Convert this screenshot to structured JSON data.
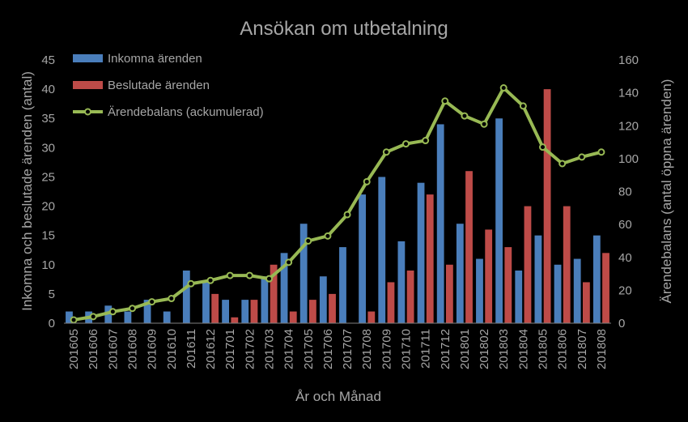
{
  "chart_data": {
    "type": "bar",
    "title": "Ansökan om utbetalning",
    "xlabel": "År och Månad",
    "ylabel": "Inkomna och beslutade ärenden (antal)",
    "y2label": "Ärendebalans (antal öppna ärenden)",
    "ylim": [
      0,
      45
    ],
    "y2lim": [
      0,
      160
    ],
    "yticks": [
      0,
      5,
      10,
      15,
      20,
      25,
      30,
      35,
      40,
      45
    ],
    "y2ticks": [
      0,
      20,
      40,
      60,
      80,
      100,
      120,
      140,
      160
    ],
    "grid": false,
    "legend_position": "top-left",
    "categories": [
      "201605",
      "201606",
      "201607",
      "201608",
      "201609",
      "201610",
      "201611",
      "201612",
      "201701",
      "201702",
      "201703",
      "201704",
      "201705",
      "201706",
      "201707",
      "201708",
      "201709",
      "201710",
      "201711",
      "201712",
      "201801",
      "201802",
      "201803",
      "201804",
      "201805",
      "201806",
      "201807",
      "201808"
    ],
    "series": [
      {
        "name": "Inkomna ärenden",
        "type": "bar",
        "axis": "left",
        "color": "#4a7ebb",
        "values": [
          2,
          2,
          3,
          2,
          4,
          2,
          9,
          7,
          4,
          4,
          8,
          12,
          17,
          8,
          13,
          22,
          25,
          14,
          24,
          34,
          17,
          11,
          35,
          9,
          15,
          10,
          11,
          15
        ]
      },
      {
        "name": "Beslutade ärenden",
        "type": "bar",
        "axis": "left",
        "color": "#be4b48",
        "values": [
          0,
          0,
          0,
          0,
          0,
          0,
          0,
          5,
          1,
          4,
          10,
          2,
          4,
          5,
          0,
          2,
          7,
          9,
          22,
          10,
          26,
          16,
          13,
          20,
          40,
          20,
          7,
          12
        ]
      },
      {
        "name": "Ärendebalans (ackumulerad)",
        "type": "line",
        "axis": "right",
        "color": "#98b954",
        "values": [
          2,
          4,
          7,
          9,
          13,
          15,
          24,
          26,
          29,
          29,
          27,
          37,
          50,
          53,
          66,
          86,
          104,
          109,
          111,
          135,
          126,
          121,
          143,
          132,
          107,
          97,
          101,
          104
        ]
      }
    ]
  }
}
